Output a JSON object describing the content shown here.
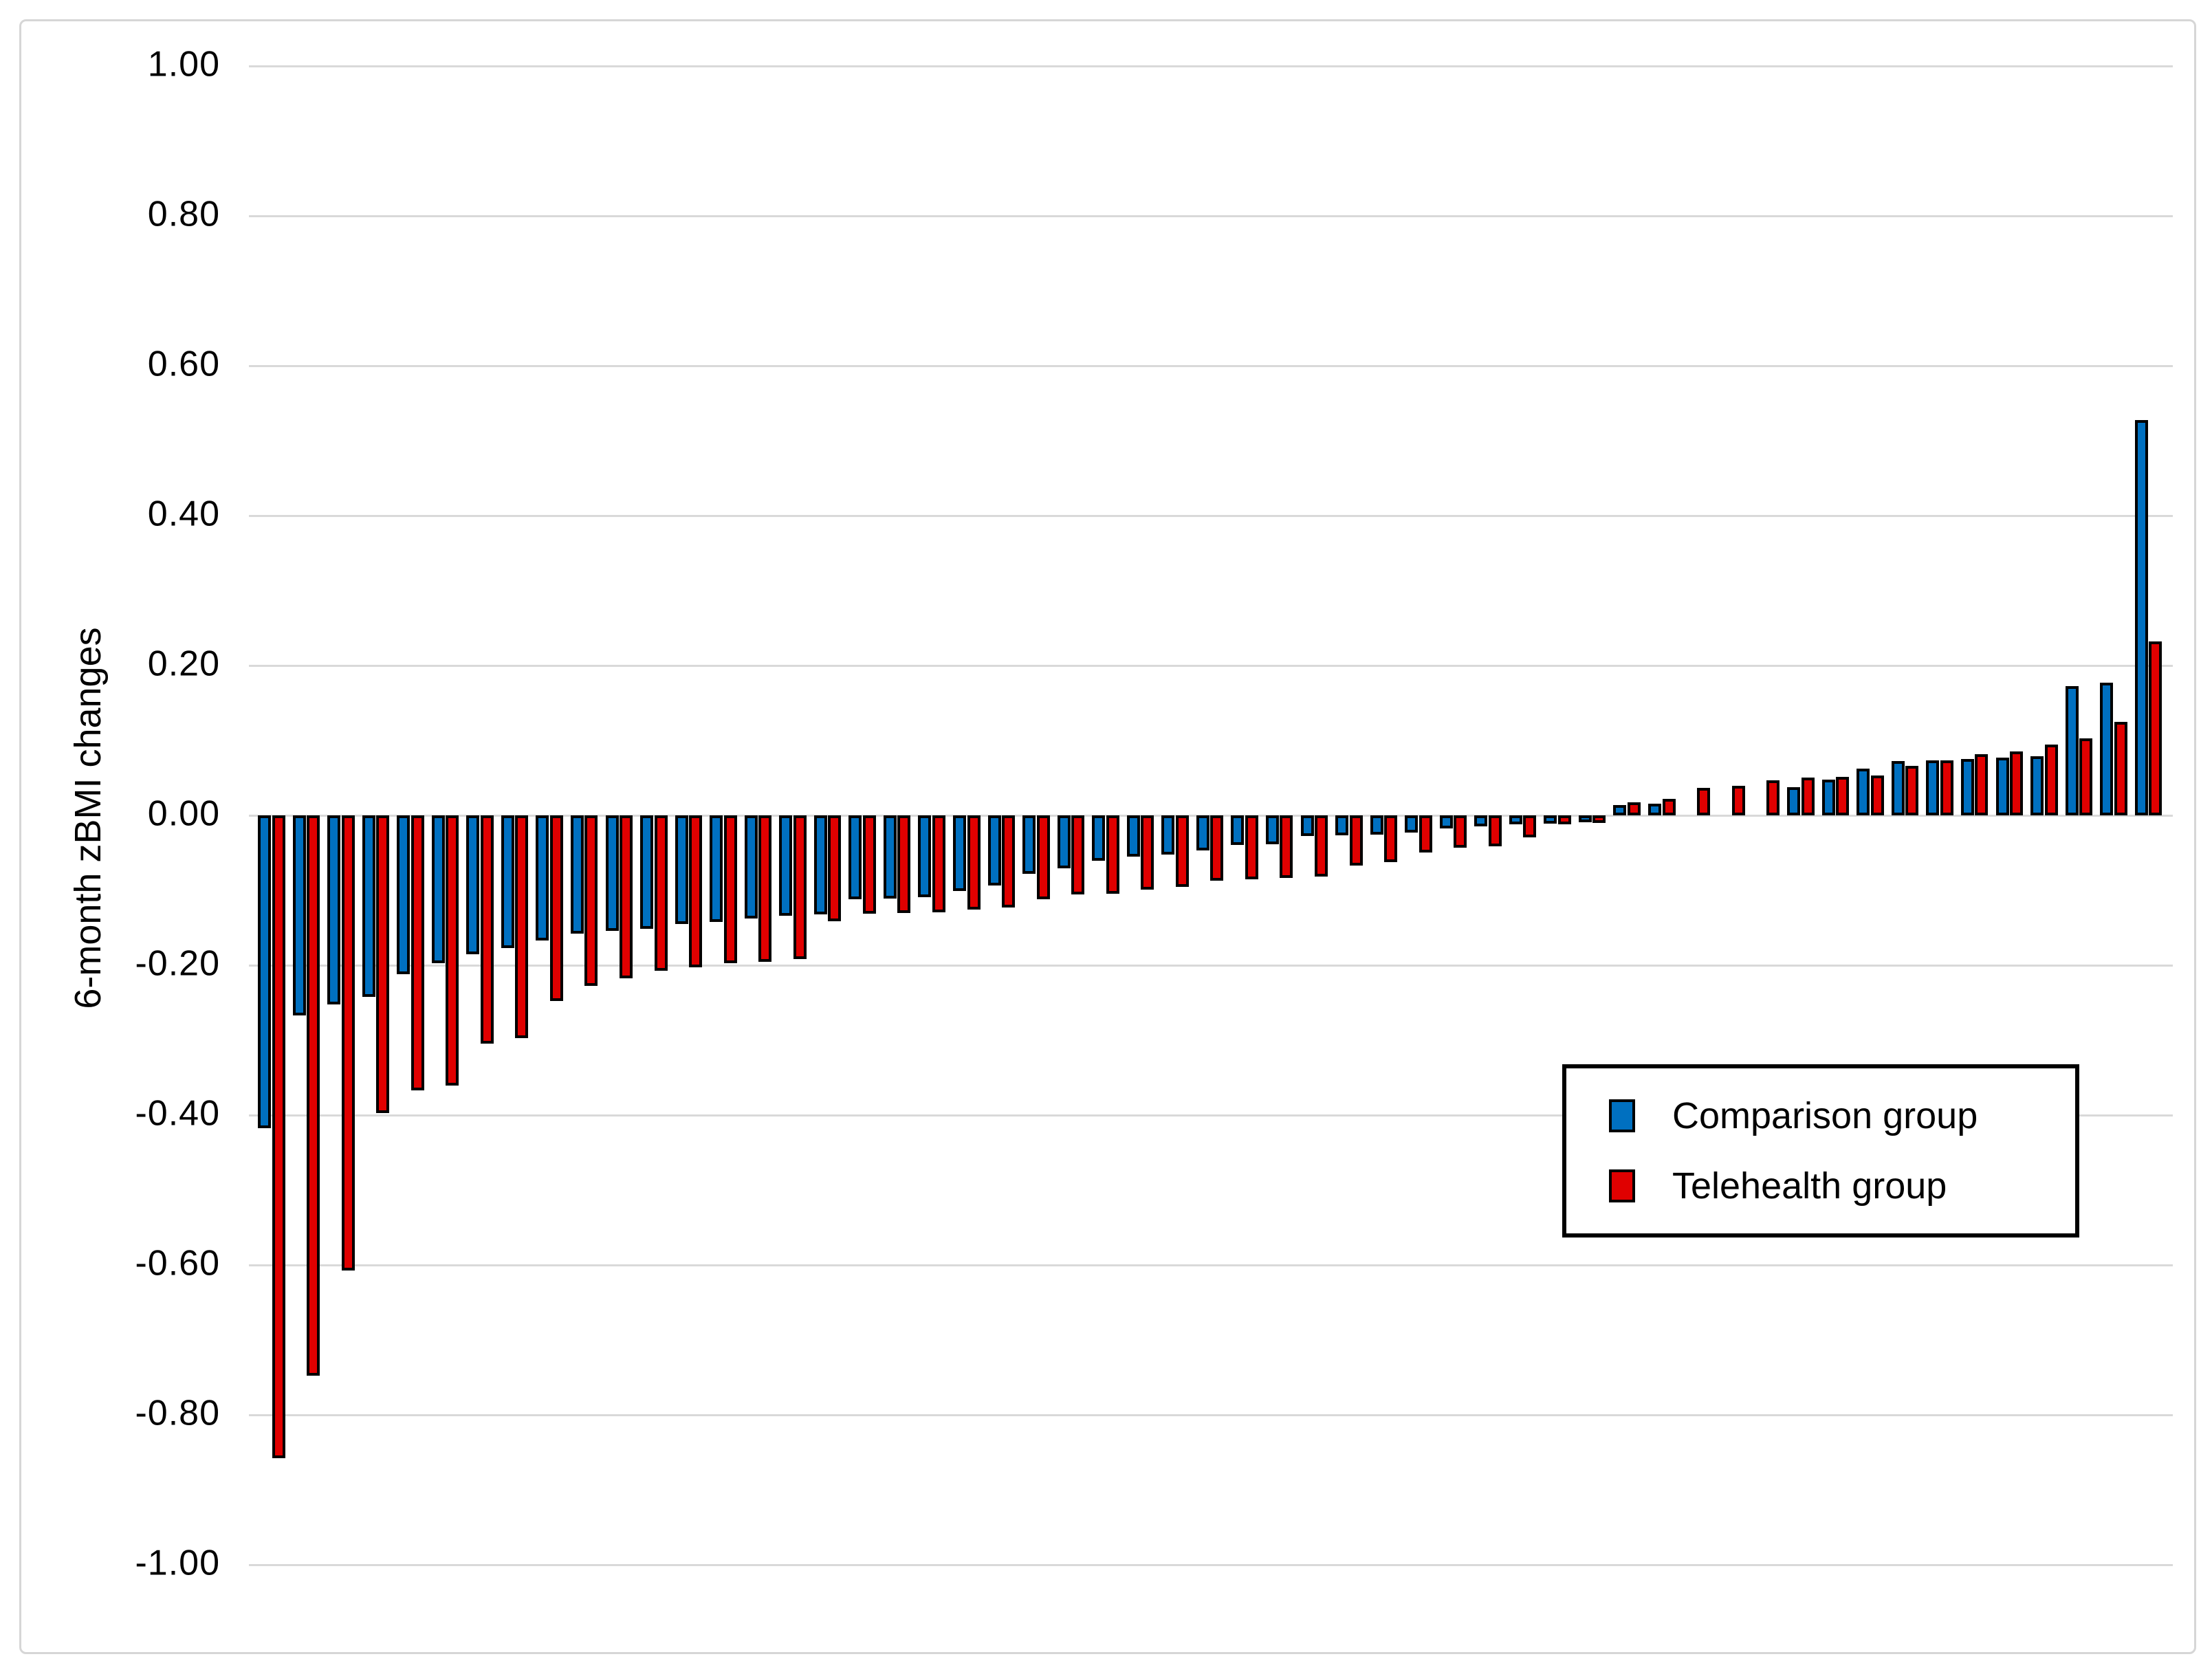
{
  "chart_data": {
    "type": "bar",
    "title": "",
    "xlabel": "",
    "ylabel": "6-month zBMI changes",
    "ylim": [
      -1.0,
      1.0
    ],
    "ytick_values": [
      1.0,
      0.8,
      0.6,
      0.4,
      0.2,
      0.0,
      -0.2,
      -0.4,
      -0.6,
      -0.8,
      -1.0
    ],
    "ytick_labels": [
      "1.00",
      "0.80",
      "0.60",
      "0.40",
      "0.20",
      "0.00",
      "-0.20",
      "-0.40",
      "-0.60",
      "-0.80",
      "-1.00"
    ],
    "grid": true,
    "gridline_color": "#d9d9d9",
    "bar_outline_color": "#000000",
    "legend_position": "inside-right",
    "n_slots": 55,
    "description": "Individual participants' 6-month zBMI changes sorted ascending; paired columns per slot, one per group; null means no bar for that group in that slot",
    "series": [
      {
        "name": "Comparison group",
        "color": "#0070c0",
        "values": [
          -0.41,
          -0.26,
          -0.245,
          -0.235,
          -0.205,
          -0.19,
          -0.178,
          -0.17,
          -0.16,
          -0.15,
          -0.147,
          -0.144,
          -0.138,
          -0.135,
          -0.13,
          -0.127,
          -0.125,
          -0.105,
          -0.104,
          -0.102,
          -0.094,
          -0.086,
          -0.071,
          -0.063,
          -0.053,
          -0.048,
          -0.045,
          -0.039,
          -0.032,
          -0.031,
          -0.02,
          -0.019,
          -0.018,
          -0.016,
          -0.01,
          -0.007,
          -0.005,
          -0.004,
          -0.002,
          0.006,
          0.008,
          null,
          null,
          null,
          0.03,
          0.04,
          0.055,
          0.065,
          0.066,
          0.068,
          0.07,
          0.072,
          0.165,
          0.17,
          0.52
        ]
      },
      {
        "name": "Telehealth group",
        "color": "#e00000",
        "values": [
          -0.85,
          -0.74,
          -0.6,
          -0.39,
          -0.36,
          -0.353,
          -0.297,
          -0.29,
          -0.24,
          -0.22,
          -0.21,
          -0.2,
          -0.195,
          -0.19,
          -0.188,
          -0.184,
          -0.134,
          -0.124,
          -0.123,
          -0.122,
          -0.118,
          -0.116,
          -0.105,
          -0.098,
          -0.097,
          -0.092,
          -0.088,
          -0.08,
          -0.078,
          -0.076,
          -0.074,
          -0.06,
          -0.055,
          -0.042,
          -0.036,
          -0.034,
          -0.022,
          -0.005,
          -0.003,
          0.01,
          0.015,
          0.029,
          0.032,
          0.039,
          0.043,
          0.044,
          0.046,
          0.059,
          0.066,
          0.074,
          0.078,
          0.087,
          0.095,
          0.117,
          0.225
        ]
      }
    ]
  },
  "legend": {
    "items": [
      {
        "label": "Comparison group",
        "color": "#0070c0"
      },
      {
        "label": "Telehealth group",
        "color": "#e00000"
      }
    ]
  }
}
